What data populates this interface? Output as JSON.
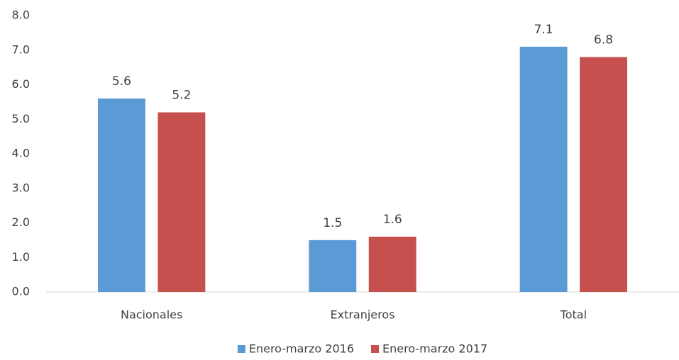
{
  "chart_data": {
    "type": "bar",
    "categories": [
      "Nacionales",
      "Extranjeros",
      "Total"
    ],
    "series": [
      {
        "name": "Enero-marzo 2016",
        "color": "#5b9bd5",
        "values": [
          5.6,
          1.5,
          7.1
        ]
      },
      {
        "name": "Enero-marzo 2017",
        "color": "#c5504e",
        "values": [
          5.2,
          1.6,
          6.8
        ]
      }
    ],
    "ylim": [
      0,
      8
    ],
    "yticks": [
      {
        "value": 0,
        "label": "0.0"
      },
      {
        "value": 1,
        "label": "1.0"
      },
      {
        "value": 2,
        "label": "2.0"
      },
      {
        "value": 3,
        "label": "3.0"
      },
      {
        "value": 4,
        "label": "4.0"
      },
      {
        "value": 5,
        "label": "5.0"
      },
      {
        "value": 6,
        "label": "6.0"
      },
      {
        "value": 7,
        "label": "7.0"
      },
      {
        "value": 8,
        "label": "8.0"
      }
    ],
    "grid": false,
    "legend": "bottom"
  }
}
